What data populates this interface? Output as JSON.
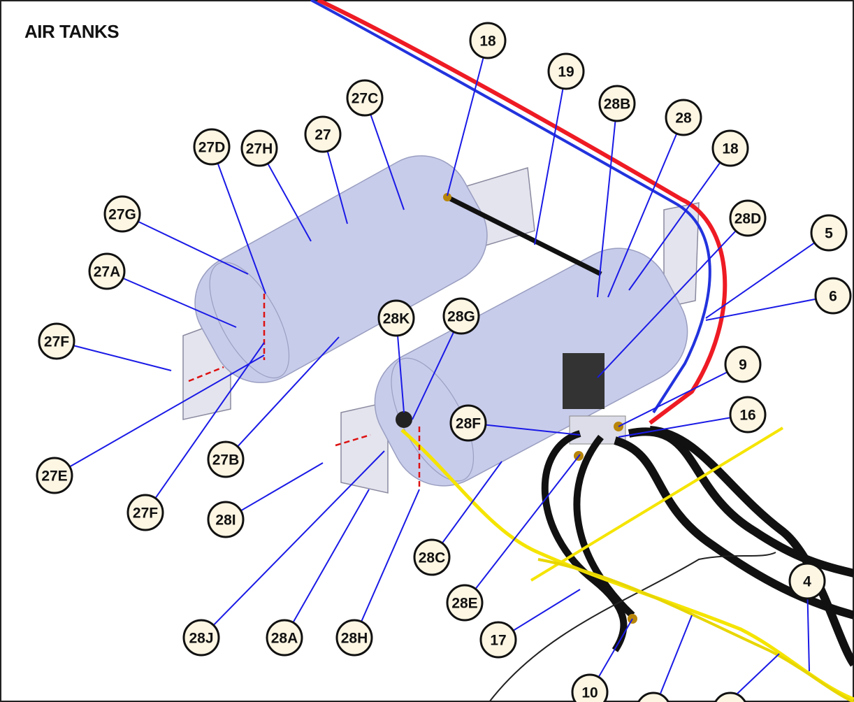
{
  "header": {
    "title": "AIR TANKS"
  },
  "callouts": [
    {
      "label": "18"
    },
    {
      "label": "19"
    },
    {
      "label": "27C"
    },
    {
      "label": "28B"
    },
    {
      "label": "28"
    },
    {
      "label": "27"
    },
    {
      "label": "27D"
    },
    {
      "label": "27H"
    },
    {
      "label": "18"
    },
    {
      "label": "27G"
    },
    {
      "label": "28D"
    },
    {
      "label": "5"
    },
    {
      "label": "27A"
    },
    {
      "label": "6"
    },
    {
      "label": "28K"
    },
    {
      "label": "28G"
    },
    {
      "label": "27F"
    },
    {
      "label": "9"
    },
    {
      "label": "16"
    },
    {
      "label": "28F"
    },
    {
      "label": "27B"
    },
    {
      "label": "27E"
    },
    {
      "label": "27F"
    },
    {
      "label": "28I"
    },
    {
      "label": "28C"
    },
    {
      "label": "4"
    },
    {
      "label": "28E"
    },
    {
      "label": "17"
    },
    {
      "label": "28J"
    },
    {
      "label": "28A"
    },
    {
      "label": "28H"
    },
    {
      "label": "10"
    }
  ]
}
